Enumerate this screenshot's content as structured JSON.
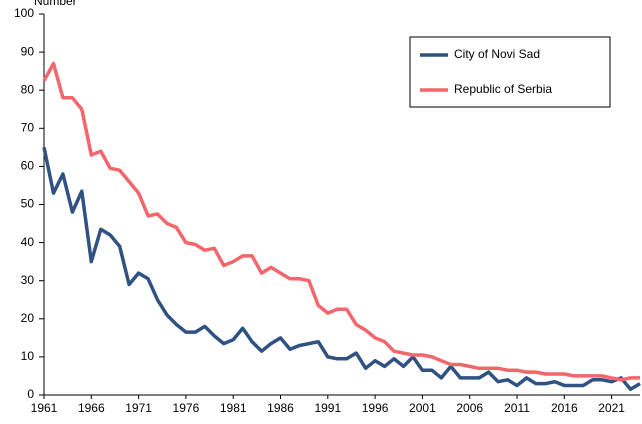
{
  "chart_data": {
    "type": "line",
    "y_label": "Number",
    "x": [
      1961,
      1962,
      1963,
      1964,
      1965,
      1966,
      1967,
      1968,
      1969,
      1970,
      1971,
      1972,
      1973,
      1974,
      1975,
      1976,
      1977,
      1978,
      1979,
      1980,
      1981,
      1982,
      1983,
      1984,
      1985,
      1986,
      1987,
      1988,
      1989,
      1990,
      1991,
      1992,
      1993,
      1994,
      1995,
      1996,
      1997,
      1998,
      1999,
      2000,
      2001,
      2002,
      2003,
      2004,
      2005,
      2006,
      2007,
      2008,
      2009,
      2010,
      2011,
      2012,
      2013,
      2014,
      2015,
      2016,
      2017,
      2018,
      2019,
      2020,
      2021,
      2022,
      2023,
      2024
    ],
    "series": [
      {
        "name": "City of Novi Sad",
        "color": "#2f5283",
        "values": [
          65,
          53,
          58,
          48,
          53.5,
          35,
          43.5,
          42,
          39,
          29,
          32,
          30.5,
          25,
          21,
          18.5,
          16.5,
          16.5,
          18,
          15.5,
          13.5,
          14.5,
          17.5,
          14,
          11.5,
          13.5,
          15,
          12,
          13,
          13.5,
          14,
          10,
          9.5,
          9.5,
          11,
          7,
          9,
          7.5,
          9.5,
          7.5,
          10,
          6.5,
          6.5,
          4.5,
          7.5,
          4.5,
          4.5,
          4.5,
          6,
          3.5,
          4,
          2.5,
          4.5,
          3,
          3,
          3.5,
          2.5,
          2.5,
          2.5,
          4,
          4,
          3.5,
          4.5,
          1.5,
          3
        ]
      },
      {
        "name": "Republic of Serbia",
        "color": "#f4666b",
        "values": [
          82.5,
          87,
          78,
          78,
          75,
          63,
          64,
          59.5,
          59,
          56,
          53,
          47,
          47.5,
          45,
          44,
          40,
          39.5,
          38,
          38.5,
          34,
          35,
          36.5,
          36.5,
          32,
          33.5,
          32,
          30.5,
          30.5,
          30,
          23.5,
          21.5,
          22.5,
          22.5,
          18.5,
          17,
          15,
          14,
          11.5,
          11,
          10.5,
          10.5,
          10,
          9,
          8,
          8,
          7.5,
          7,
          7,
          7,
          6.5,
          6.5,
          6,
          6,
          5.5,
          5.5,
          5.5,
          5,
          5,
          5,
          5,
          4.5,
          4,
          4.5,
          4.5
        ]
      }
    ],
    "xlim": [
      1961,
      2024
    ],
    "xticks": [
      1961,
      1966,
      1971,
      1976,
      1981,
      1986,
      1991,
      1996,
      2001,
      2006,
      2011,
      2016,
      2021
    ],
    "ylim": [
      0,
      100
    ],
    "yticks": [
      0,
      10,
      20,
      30,
      40,
      50,
      60,
      70,
      80,
      90,
      100
    ],
    "grid": false,
    "legend": "upper right"
  }
}
